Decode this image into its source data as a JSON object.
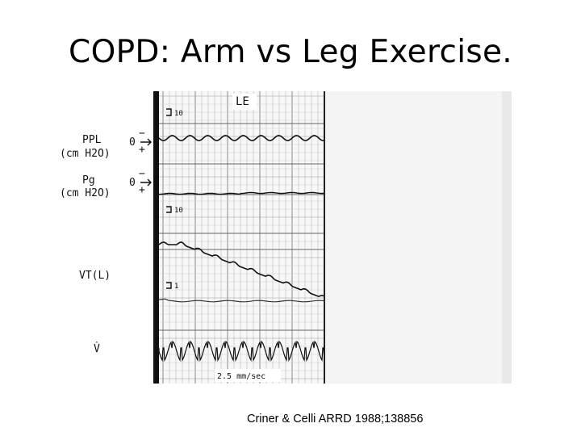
{
  "slide": {
    "title": "COPD: Arm vs Leg Exercise.",
    "citation": "Criner & Celli ARRD 1988;138856"
  },
  "figure": {
    "panel_label": "LE",
    "speed_label": "2.5 mm/sec",
    "channels": [
      {
        "id": "ppl",
        "line1": "PPL",
        "line2": "(cm H2O)",
        "zero_marker": "0",
        "minus": "−",
        "plus": "+"
      },
      {
        "id": "pg",
        "line1": "Pg",
        "line2": "(cm H2O)",
        "zero_marker": "0",
        "minus": "−",
        "plus": "+"
      },
      {
        "id": "vt",
        "line1": "VT(L)"
      },
      {
        "id": "vdot",
        "line1": "V̇"
      }
    ],
    "calibrations": [
      "10",
      "10",
      "1"
    ]
  }
}
